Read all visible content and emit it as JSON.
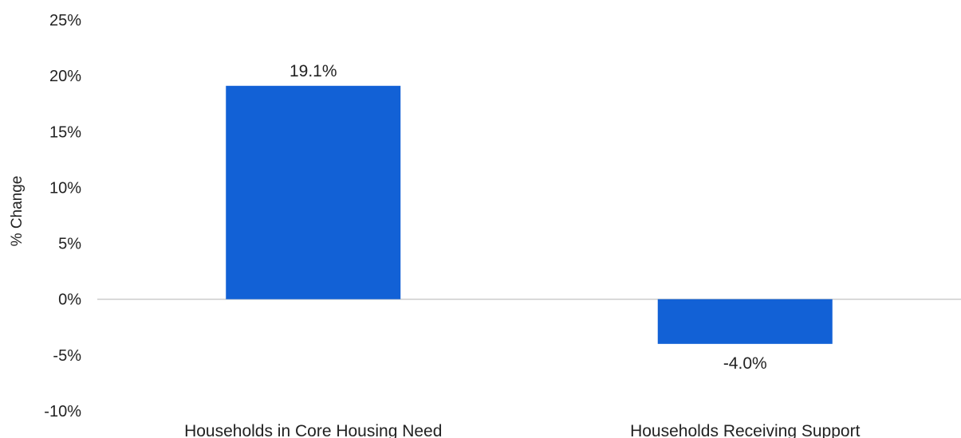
{
  "chart_data": {
    "type": "bar",
    "title": "",
    "xlabel": "",
    "ylabel": "% Change",
    "categories": [
      "Households in Core Housing Need",
      "Households Receiving Support"
    ],
    "values": [
      19.1,
      -4.0
    ],
    "data_labels": [
      "19.1%",
      "-4.0%"
    ],
    "ylim": [
      -10,
      25
    ],
    "y_ticks": [
      25,
      20,
      15,
      10,
      5,
      0,
      -5,
      -10
    ],
    "y_tick_labels": [
      "25%",
      "20%",
      "15%",
      "10%",
      "5%",
      "0%",
      "-5%",
      "-10%"
    ],
    "grid": false,
    "legend": "none",
    "bar_color": "#1261D6",
    "axis_color": "#CCCCCC"
  }
}
